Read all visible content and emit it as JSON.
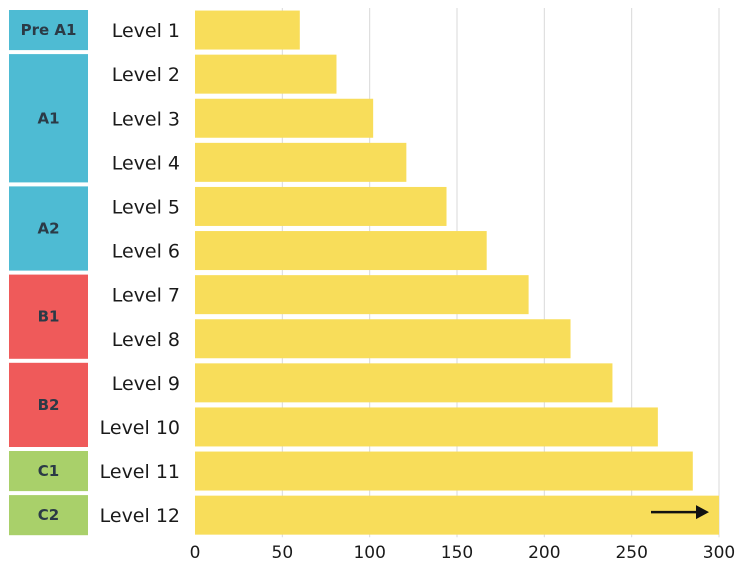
{
  "chart_data": {
    "type": "bar",
    "orientation": "horizontal",
    "categories": [
      "Level 1",
      "Level 2",
      "Level 3",
      "Level 4",
      "Level 5",
      "Level 6",
      "Level 7",
      "Level 8",
      "Level 9",
      "Level 10",
      "Level 11",
      "Level 12"
    ],
    "values": [
      60,
      81,
      102,
      121,
      144,
      167,
      191,
      215,
      239,
      265,
      285,
      300
    ],
    "xlim": [
      0,
      300
    ],
    "xticks": [
      0,
      50,
      100,
      150,
      200,
      250,
      300
    ],
    "grid": "vertical",
    "bar_color": "#f8dd5a",
    "last_bar_arrow": true,
    "groups": [
      {
        "label": "Pre A1",
        "levels": [
          1,
          1
        ],
        "color": "#4ebbd3"
      },
      {
        "label": "A1",
        "levels": [
          2,
          4
        ],
        "color": "#4ebbd3"
      },
      {
        "label": "A2",
        "levels": [
          5,
          6
        ],
        "color": "#4ebbd3"
      },
      {
        "label": "B1",
        "levels": [
          7,
          8
        ],
        "color": "#ef5a5a"
      },
      {
        "label": "B2",
        "levels": [
          9,
          10
        ],
        "color": "#ef5a5a"
      },
      {
        "label": "C1",
        "levels": [
          11,
          11
        ],
        "color": "#a9d06a"
      },
      {
        "label": "C2",
        "levels": [
          12,
          12
        ],
        "color": "#a9d06a"
      }
    ]
  }
}
